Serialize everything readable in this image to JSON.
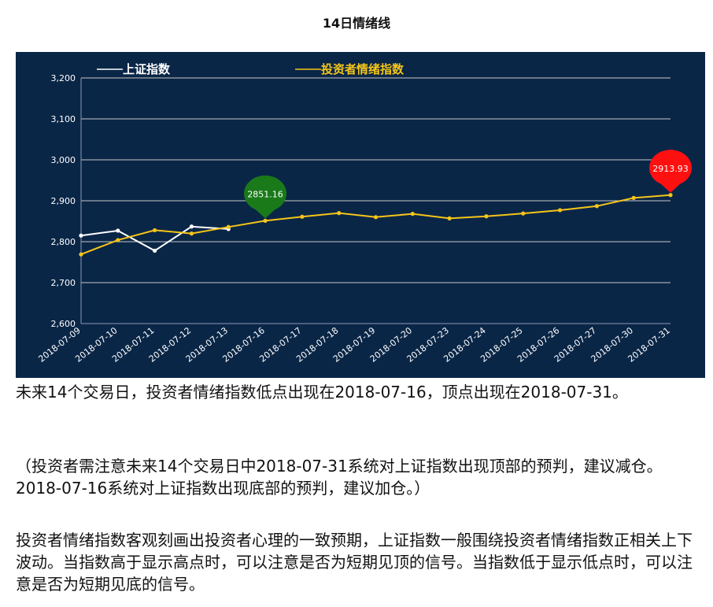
{
  "page": {
    "title": "14日情绪线",
    "paragraph1": "未来14个交易日，投资者情绪指数低点出现在2018-07-16，顶点出现在2018-07-31。",
    "paragraph2": "（投资者需注意未来14个交易日中2018-07-31系统对上证指数出现顶部的预判，建议减仓。2018-07-16系统对上证指数出现底部的预判，建议加仓。）",
    "paragraph3": "投资者情绪指数客观刻画出投资者心理的一致预期，上证指数一般围绕投资者情绪指数正相关上下波动。当指数高于显示高点时，可以注意是否为短期见顶的信号。当指数低于显示低点时，可以注意是否为短期见底的信号。"
  },
  "colors": {
    "background": "#0a2647",
    "grid": "#c8c8c8",
    "axis_text": "#ffffff",
    "shanghai": "#ffffff",
    "sentiment": "#f5c518",
    "low_marker": "#1a7a1a",
    "high_marker": "#ff1010"
  },
  "chart_data": {
    "type": "line",
    "title": "14日情绪线",
    "categories": [
      "2018-07-09",
      "2018-07-10",
      "2018-07-11",
      "2018-07-12",
      "2018-07-13",
      "2018-07-16",
      "2018-07-17",
      "2018-07-18",
      "2018-07-19",
      "2018-07-20",
      "2018-07-23",
      "2018-07-24",
      "2018-07-25",
      "2018-07-26",
      "2018-07-27",
      "2018-07-30",
      "2018-07-31"
    ],
    "ylim": [
      2600,
      3200
    ],
    "yticks": [
      2600,
      2700,
      2800,
      2900,
      3000,
      3100,
      3200
    ],
    "ytick_labels": [
      "2,600",
      "2,700",
      "2,800",
      "2,900",
      "3,000",
      "3,100",
      "3,200"
    ],
    "grid": true,
    "legend_position": "top",
    "series": [
      {
        "name": "上证指数",
        "color": "#ffffff",
        "values": [
          2815,
          2827,
          2778,
          2837,
          2831,
          null,
          null,
          null,
          null,
          null,
          null,
          null,
          null,
          null,
          null,
          null,
          null
        ]
      },
      {
        "name": "投资者情绪指数",
        "color": "#f5c518",
        "values": [
          2769,
          2804,
          2828,
          2820,
          2836,
          2851.16,
          2861,
          2870,
          2860,
          2868,
          2857,
          2862,
          2869,
          2877,
          2887,
          2907,
          2913.93
        ]
      }
    ],
    "annotations": [
      {
        "label": "2851.16",
        "x": "2018-07-16",
        "y": 2851.16,
        "kind": "low"
      },
      {
        "label": "2913.93",
        "x": "2018-07-31",
        "y": 2913.93,
        "kind": "high"
      }
    ]
  }
}
